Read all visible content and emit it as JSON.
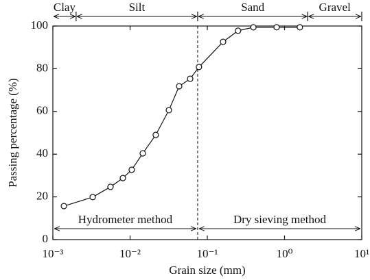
{
  "chart_data": {
    "type": "line",
    "x_label": "Grain size (mm)",
    "y_label": "Passing percentage (%)",
    "x": [
      0.00139,
      0.00328,
      0.00558,
      0.00807,
      0.0105,
      0.0146,
      0.0215,
      0.0318,
      0.0432,
      0.06,
      0.078,
      0.16,
      0.25,
      0.395,
      0.79,
      1.58
    ],
    "values": [
      15.7,
      19.9,
      24.7,
      28.8,
      32.7,
      40.4,
      49.0,
      60.6,
      71.8,
      75.3,
      80.8,
      92.6,
      97.8,
      99.4,
      99.4,
      99.4
    ],
    "color": "#111111",
    "xscale": "log",
    "xlim": [
      0.001,
      10
    ],
    "xticks": [
      {
        "value": 0.001,
        "label": "10⁻³"
      },
      {
        "value": 0.01,
        "label": "10⁻²"
      },
      {
        "value": 0.1,
        "label": "10⁻¹"
      },
      {
        "value": 1,
        "label": "10⁰"
      },
      {
        "value": 10,
        "label": "10¹"
      }
    ],
    "ylim": [
      0,
      100
    ],
    "yticks": [
      0,
      20,
      40,
      60,
      80,
      100
    ],
    "zones": [
      {
        "label": "Clay",
        "range": [
          0.001,
          0.002
        ]
      },
      {
        "label": "Silt",
        "range": [
          0.002,
          0.075
        ]
      },
      {
        "label": "Sand",
        "range": [
          0.075,
          2
        ]
      },
      {
        "label": "Gravel",
        "range": [
          2,
          10
        ]
      }
    ],
    "methods": [
      {
        "label": "Hydrometer method",
        "range": [
          0.001,
          0.075
        ]
      },
      {
        "label": "Dry sieving method",
        "range": [
          0.075,
          10
        ]
      }
    ]
  }
}
